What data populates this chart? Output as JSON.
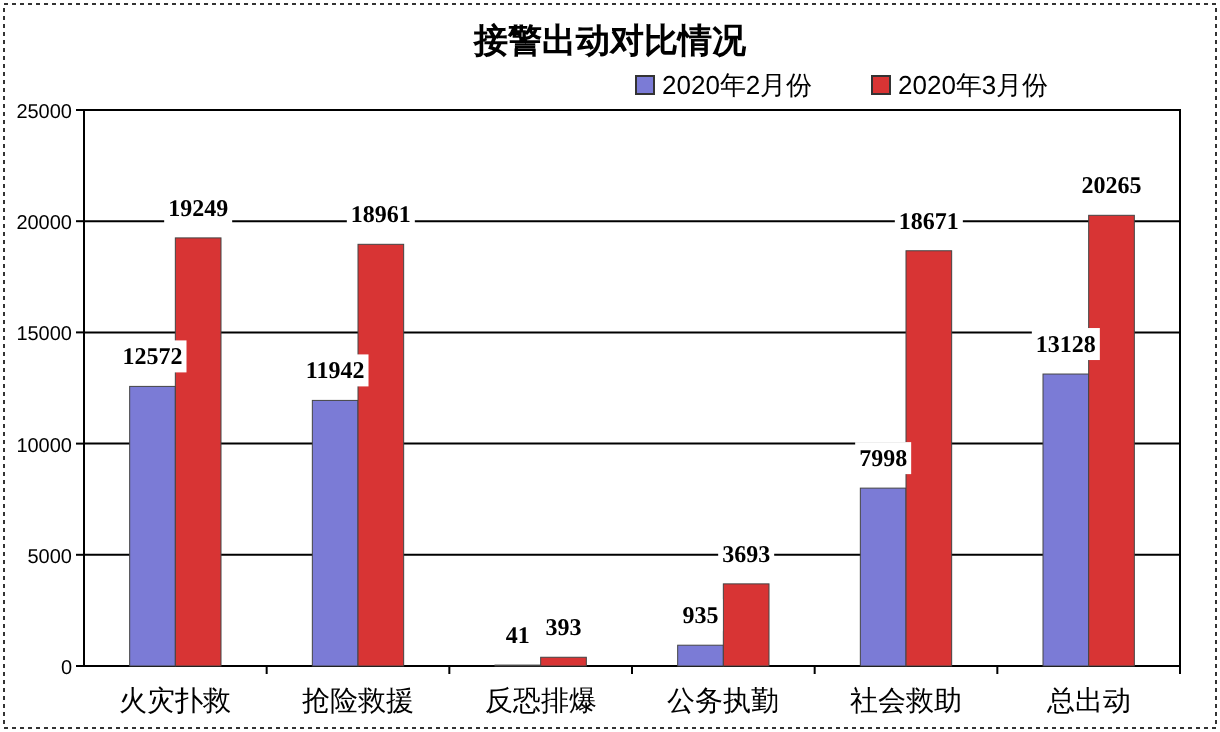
{
  "chart_data": {
    "type": "bar",
    "title": "接警出动对比情况",
    "categories": [
      "火灾扑救",
      "抢险救援",
      "反恐排爆",
      "公务执勤",
      "社会救助",
      "总出动"
    ],
    "series": [
      {
        "name": "2020年2月份",
        "color": "#7b7bd6",
        "values": [
          12572,
          11942,
          41,
          935,
          7998,
          13128
        ]
      },
      {
        "name": "2020年3月份",
        "color": "#d83434",
        "values": [
          19249,
          18961,
          393,
          3693,
          18671,
          20265
        ]
      }
    ],
    "ylim": [
      0,
      25000
    ],
    "yticks": [
      0,
      5000,
      10000,
      15000,
      20000,
      25000
    ],
    "grid": "y",
    "legend": "top right",
    "data_labels": true
  }
}
